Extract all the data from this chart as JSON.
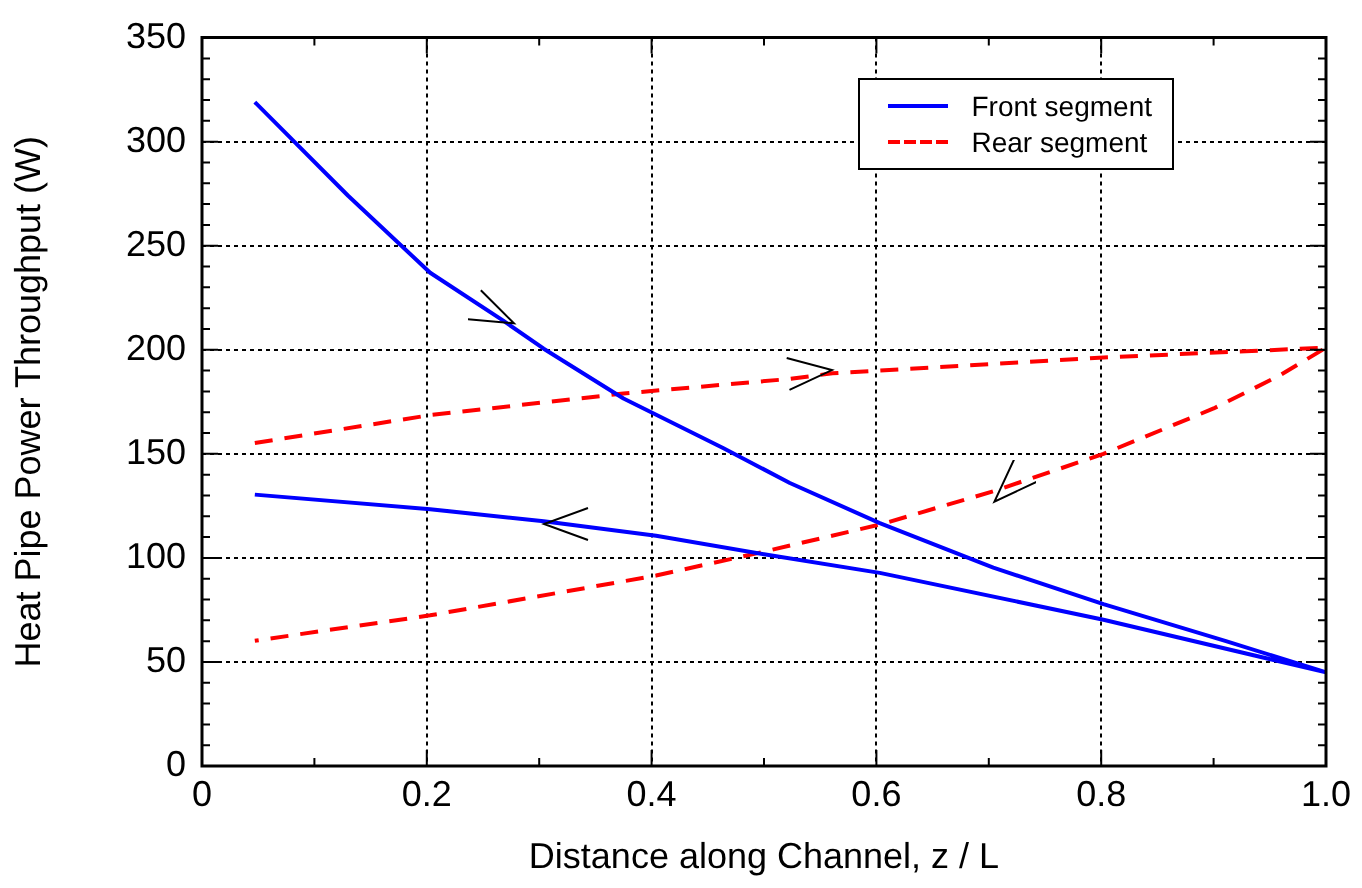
{
  "chart_data": {
    "type": "line",
    "xlabel": "Distance along Channel, z / L",
    "ylabel": "Heat Pipe Power Throughput (W)",
    "xlim": [
      0,
      1
    ],
    "xticks": [
      {
        "value": 0,
        "label": "0"
      },
      {
        "value": 0.2,
        "label": "0.2"
      },
      {
        "value": 0.4,
        "label": "0.4"
      },
      {
        "value": 0.6,
        "label": "0.6"
      },
      {
        "value": 0.8,
        "label": "0.8"
      },
      {
        "value": 1,
        "label": "1.0"
      }
    ],
    "ylim": [
      0,
      350
    ],
    "yticks": [
      0,
      50,
      100,
      150,
      200,
      250,
      300,
      350
    ],
    "grid": true,
    "legend": "top right",
    "marker": "none",
    "series": [
      {
        "name": "Front segment",
        "color": "#0000ff",
        "line_style": "solid",
        "x": [
          0.047,
          0.13,
          0.203,
          0.268,
          0.304,
          0.375,
          0.464,
          0.523,
          0.603,
          0.704,
          0.802,
          0.911,
          1.0,
          0.802,
          0.603,
          0.5,
          0.404,
          0.304,
          0.203,
          0.047
        ],
        "values": [
          319,
          274,
          237,
          214,
          200.5,
          176.6,
          152.7,
          136,
          116.7,
          95.3,
          77.8,
          60,
          45,
          70.3,
          92.8,
          101.7,
          110.6,
          117.6,
          123.4,
          130.4
        ]
      },
      {
        "name": "Rear segment",
        "color": "#ff0000",
        "line_style": "dashed",
        "x": [
          0.047,
          0.203,
          0.375,
          0.523,
          0.561,
          0.802,
          1.0,
          0.959,
          0.9,
          0.802,
          0.704,
          0.603,
          0.5,
          0.404,
          0.203,
          0.047
        ],
        "values": [
          155.2,
          168.6,
          179,
          186,
          188.7,
          196.3,
          201,
          187.7,
          171.8,
          150,
          132,
          116,
          103,
          91.5,
          72.4,
          60.2
        ]
      }
    ]
  }
}
